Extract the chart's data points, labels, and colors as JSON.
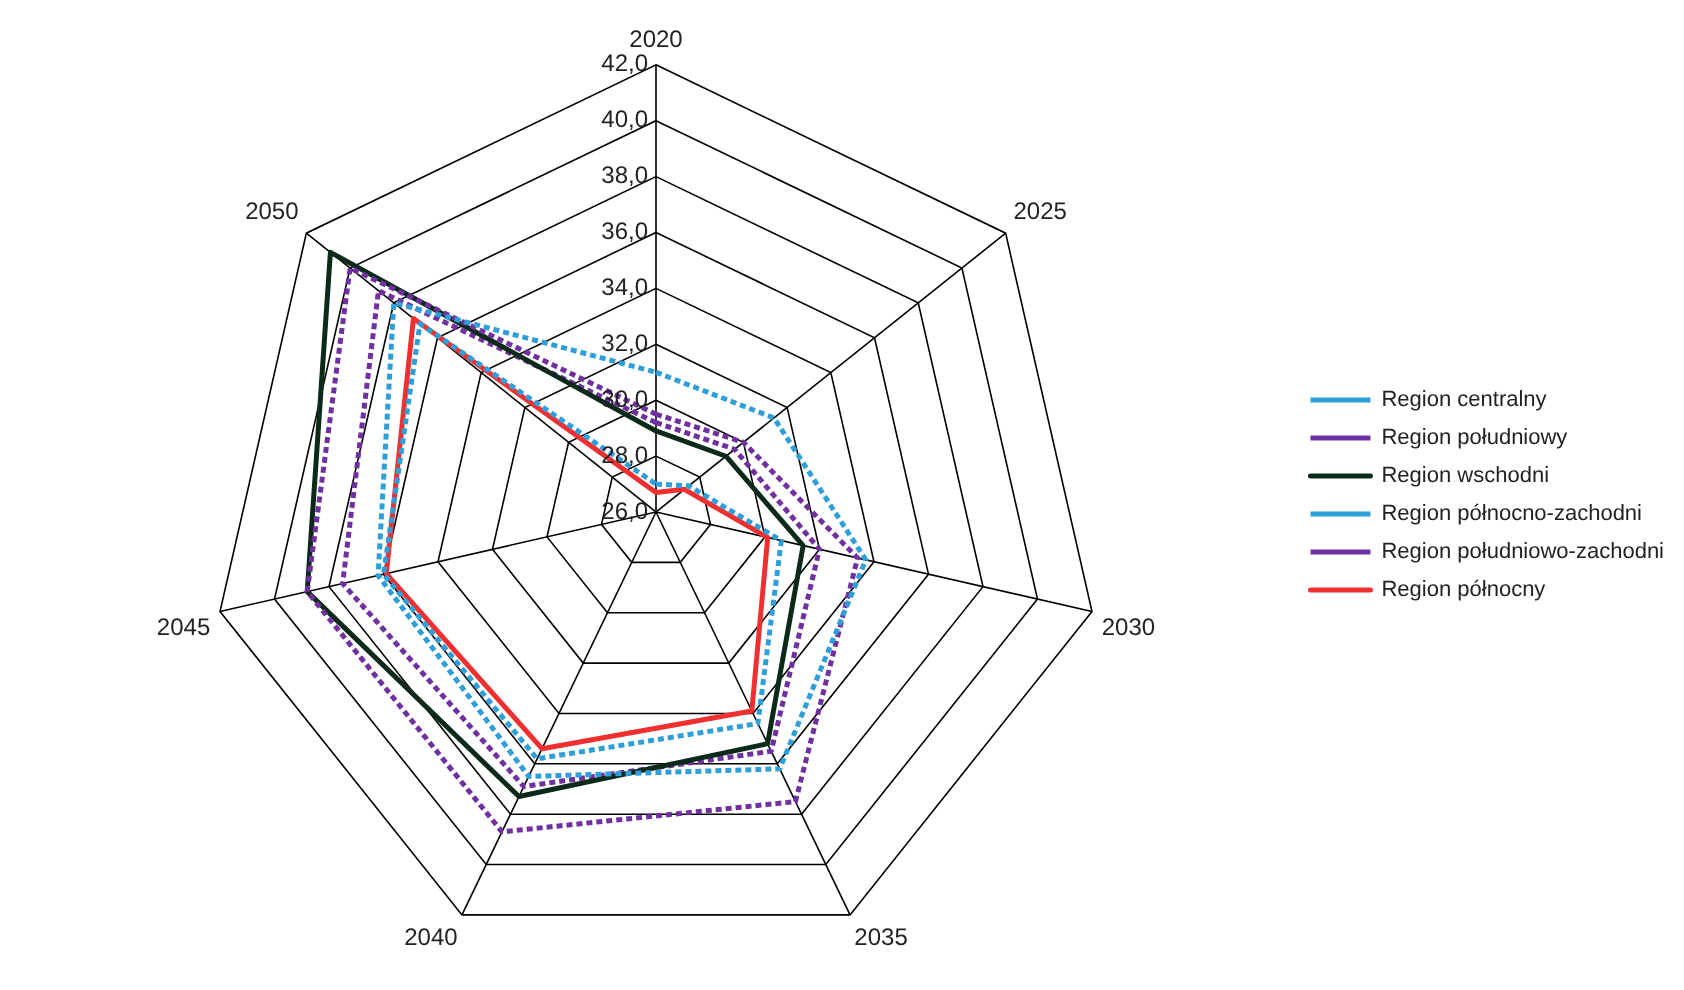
{
  "chart_data": {
    "type": "radar",
    "categories": [
      "2020",
      "2025",
      "2030",
      "2035",
      "2040",
      "2045",
      "2050"
    ],
    "ylim": [
      26,
      42
    ],
    "yticks": [
      {
        "value": 26,
        "label": "26,0"
      },
      {
        "value": 28,
        "label": "28,0"
      },
      {
        "value": 30,
        "label": "30,0"
      },
      {
        "value": 32,
        "label": "32,0"
      },
      {
        "value": 34,
        "label": "34,0"
      },
      {
        "value": 36,
        "label": "36,0"
      },
      {
        "value": 38,
        "label": "38,0"
      },
      {
        "value": 40,
        "label": "40,0"
      },
      {
        "value": 42,
        "label": "42,0"
      }
    ],
    "grid": true,
    "legend": "right",
    "marker": "none",
    "series": [
      {
        "name": "Region centralny",
        "color": "#2e9fd8",
        "line_style": "dotted",
        "values": [
          31.0,
          31.4,
          33.7,
          36.2,
          36.5,
          36.2,
          38.0
        ]
      },
      {
        "name": "Region południowy",
        "color": "#7030a0",
        "line_style": "dotted",
        "values": [
          29.5,
          30.0,
          33.4,
          37.5,
          38.7,
          38.8,
          40.0
        ]
      },
      {
        "name": "Region wschodni",
        "color": "#0b2a1a",
        "line_style": "solid",
        "values": [
          28.9,
          29.2,
          31.4,
          35.2,
          37.3,
          38.8,
          40.9
        ]
      },
      {
        "name": "Region północno-zachodni",
        "color": "#2e9fd8",
        "line_style": "dotted",
        "values": [
          27.0,
          27.5,
          30.6,
          34.4,
          35.8,
          36.0,
          36.8
        ]
      },
      {
        "name": "Region południowo-zachodni",
        "color": "#7030a0",
        "line_style": "dotted",
        "values": [
          29.2,
          29.6,
          32.0,
          35.5,
          36.9,
          37.5,
          38.7
        ]
      },
      {
        "name": "Region północny",
        "color": "#f03030",
        "line_style": "solid",
        "values": [
          26.7,
          27.3,
          30.1,
          33.9,
          35.4,
          35.9,
          37.1
        ]
      }
    ]
  }
}
